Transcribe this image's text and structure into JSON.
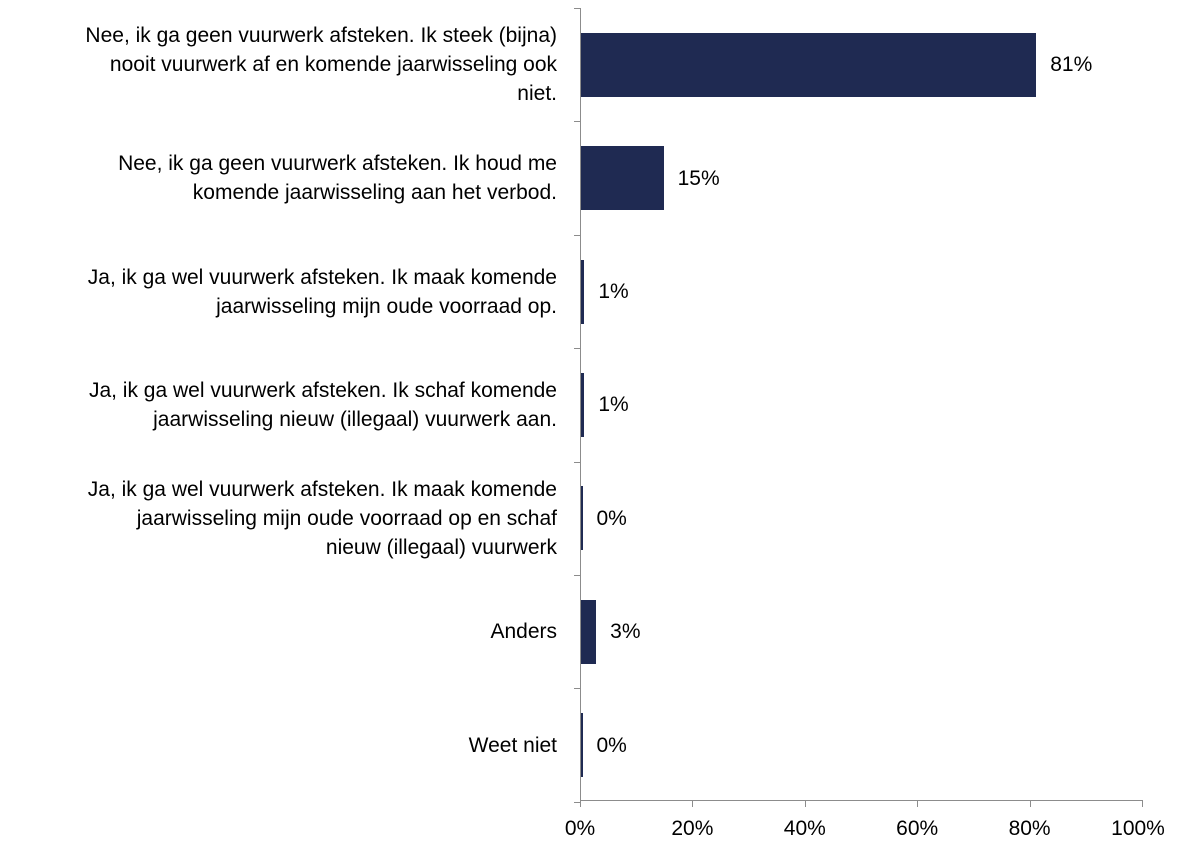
{
  "chart_data": {
    "type": "bar",
    "orientation": "horizontal",
    "categories": [
      "Nee, ik ga geen vuurwerk afsteken. Ik steek (bijna) nooit vuurwerk af en komende jaarwisseling ook niet.",
      "Nee, ik ga geen vuurwerk afsteken. Ik houd me komende jaarwisseling aan het verbod.",
      "Ja, ik ga wel vuurwerk afsteken. Ik maak komende jaarwisseling mijn oude voorraad op.",
      "Ja, ik ga wel vuurwerk afsteken. Ik schaf komende jaarwisseling nieuw (illegaal) vuurwerk aan.",
      "Ja, ik ga wel vuurwerk afsteken. Ik maak komende jaarwisseling mijn oude voorraad op en schaf nieuw (illegaal) vuurwerk",
      "Anders",
      "Weet niet"
    ],
    "category_label_lines": [
      [
        "Nee, ik ga geen vuurwerk afsteken. Ik steek (bijna)",
        "nooit vuurwerk af en komende jaarwisseling ook",
        "niet."
      ],
      [
        "Nee, ik ga geen vuurwerk afsteken. Ik houd me",
        "komende jaarwisseling aan het verbod."
      ],
      [
        "Ja, ik ga wel vuurwerk afsteken. Ik maak komende",
        "jaarwisseling mijn oude voorraad op."
      ],
      [
        "Ja, ik ga wel vuurwerk afsteken. Ik schaf komende",
        "jaarwisseling nieuw (illegaal) vuurwerk aan."
      ],
      [
        "Ja, ik ga wel vuurwerk afsteken. Ik maak komende",
        "jaarwisseling mijn oude voorraad op en schaf",
        "nieuw (illegaal) vuurwerk"
      ],
      [
        "Anders"
      ],
      [
        "Weet niet"
      ]
    ],
    "values": [
      81,
      14.7,
      0.6,
      0.6,
      0.2,
      2.7,
      0.1
    ],
    "data_labels": [
      "81%",
      "15%",
      "1%",
      "1%",
      "0%",
      "3%",
      "0%"
    ],
    "xlim": [
      0,
      100
    ],
    "x_ticks": [
      0,
      20,
      40,
      60,
      80,
      100
    ],
    "x_tick_labels": [
      "0%",
      "20%",
      "40%",
      "60%",
      "80%",
      "100%"
    ],
    "bar_color": "#1f2a52",
    "axis_color": "#8c8c8c",
    "title": "",
    "xlabel": "",
    "ylabel": "",
    "grid": false,
    "legend": "none"
  }
}
